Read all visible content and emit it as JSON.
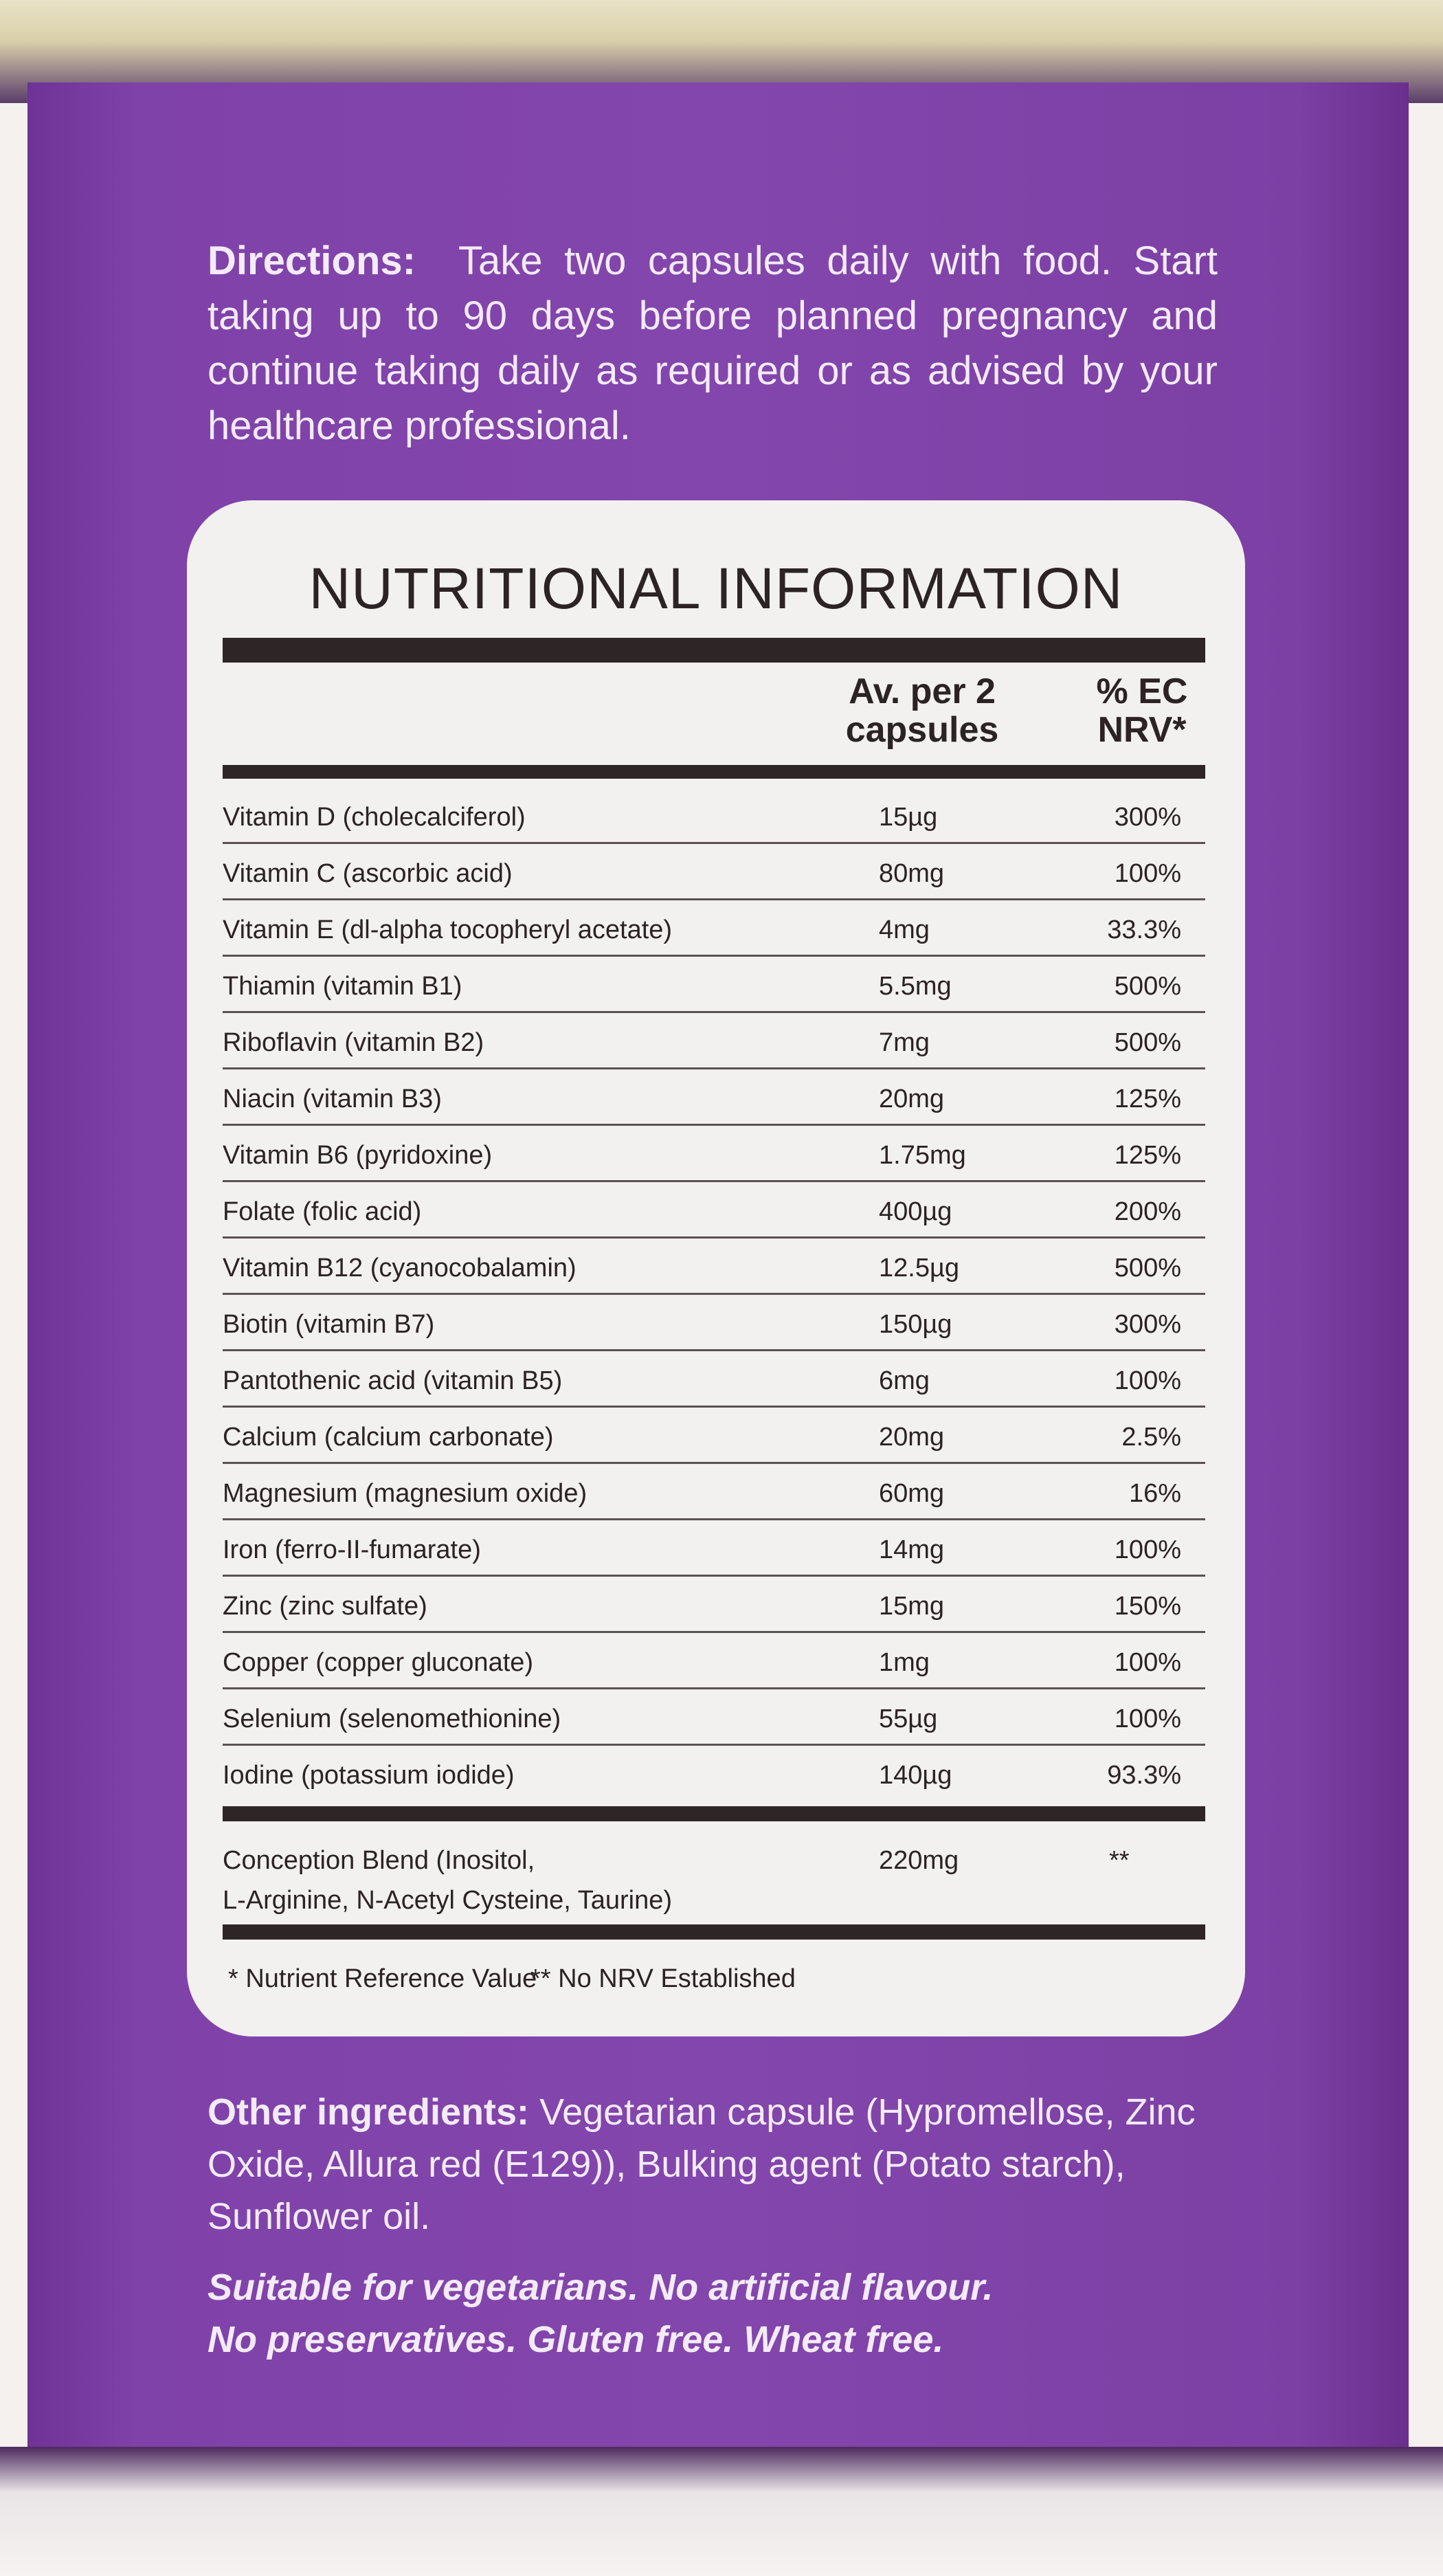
{
  "directions": {
    "label": "Directions:",
    "text": "Take two capsules daily with food. Start taking up to 90 days before planned pregnancy and continue taking daily as required or as advised by your healthcare professional."
  },
  "panel": {
    "title": "NUTRITIONAL INFORMATION",
    "headers": {
      "amount": "Av. per 2 capsules",
      "nrv": "% EC NRV*"
    },
    "rows": [
      {
        "name": "Vitamin D (cholecalciferol)",
        "amount": "15µg",
        "nrv": "300%"
      },
      {
        "name": "Vitamin C (ascorbic acid)",
        "amount": "80mg",
        "nrv": "100%"
      },
      {
        "name": "Vitamin E (dl-alpha tocopheryl acetate)",
        "amount": "4mg",
        "nrv": "33.3%"
      },
      {
        "name": "Thiamin (vitamin B1)",
        "amount": "5.5mg",
        "nrv": "500%"
      },
      {
        "name": "Riboflavin (vitamin B2)",
        "amount": "7mg",
        "nrv": "500%"
      },
      {
        "name": "Niacin (vitamin B3)",
        "amount": "20mg",
        "nrv": "125%"
      },
      {
        "name": "Vitamin B6 (pyridoxine)",
        "amount": "1.75mg",
        "nrv": "125%"
      },
      {
        "name": "Folate (folic acid)",
        "amount": "400µg",
        "nrv": "200%"
      },
      {
        "name": "Vitamin B12 (cyanocobalamin)",
        "amount": "12.5µg",
        "nrv": "500%"
      },
      {
        "name": "Biotin (vitamin B7)",
        "amount": "150µg",
        "nrv": "300%"
      },
      {
        "name": "Pantothenic acid (vitamin B5)",
        "amount": "6mg",
        "nrv": "100%"
      },
      {
        "name": "Calcium (calcium carbonate)",
        "amount": "20mg",
        "nrv": "2.5%"
      },
      {
        "name": "Magnesium (magnesium oxide)",
        "amount": "60mg",
        "nrv": "16%"
      },
      {
        "name": "Iron (ferro-II-fumarate)",
        "amount": "14mg",
        "nrv": "100%"
      },
      {
        "name": "Zinc (zinc sulfate)",
        "amount": "15mg",
        "nrv": "150%"
      },
      {
        "name": "Copper (copper gluconate)",
        "amount": "1mg",
        "nrv": "100%"
      },
      {
        "name": "Selenium (selenomethionine)",
        "amount": "55µg",
        "nrv": "100%"
      },
      {
        "name": "Iodine (potassium iodide)",
        "amount": "140µg",
        "nrv": "93.3%"
      }
    ],
    "blend": {
      "name_line1": "Conception Blend (Inositol,",
      "name_line2": "L-Arginine, N-Acetyl Cysteine, Taurine)",
      "amount": "220mg",
      "nrv": "**"
    },
    "footnotes": {
      "nrv": "* Nutrient Reference Value",
      "none": "** No NRV Established"
    }
  },
  "other": {
    "label": "Other ingredients:",
    "text": "Vegetarian capsule (Hypromellose, Zinc Oxide, Allura red (E129)), Bulking agent (Potato starch), Sunflower oil."
  },
  "suitable": {
    "line1": "Suitable for vegetarians. No artificial flavour.",
    "line2": "No preservatives. Gluten free. Wheat free."
  },
  "colors": {
    "box": "#8346ac",
    "panel": "#f3f1ef",
    "ink": "#2b2325"
  }
}
